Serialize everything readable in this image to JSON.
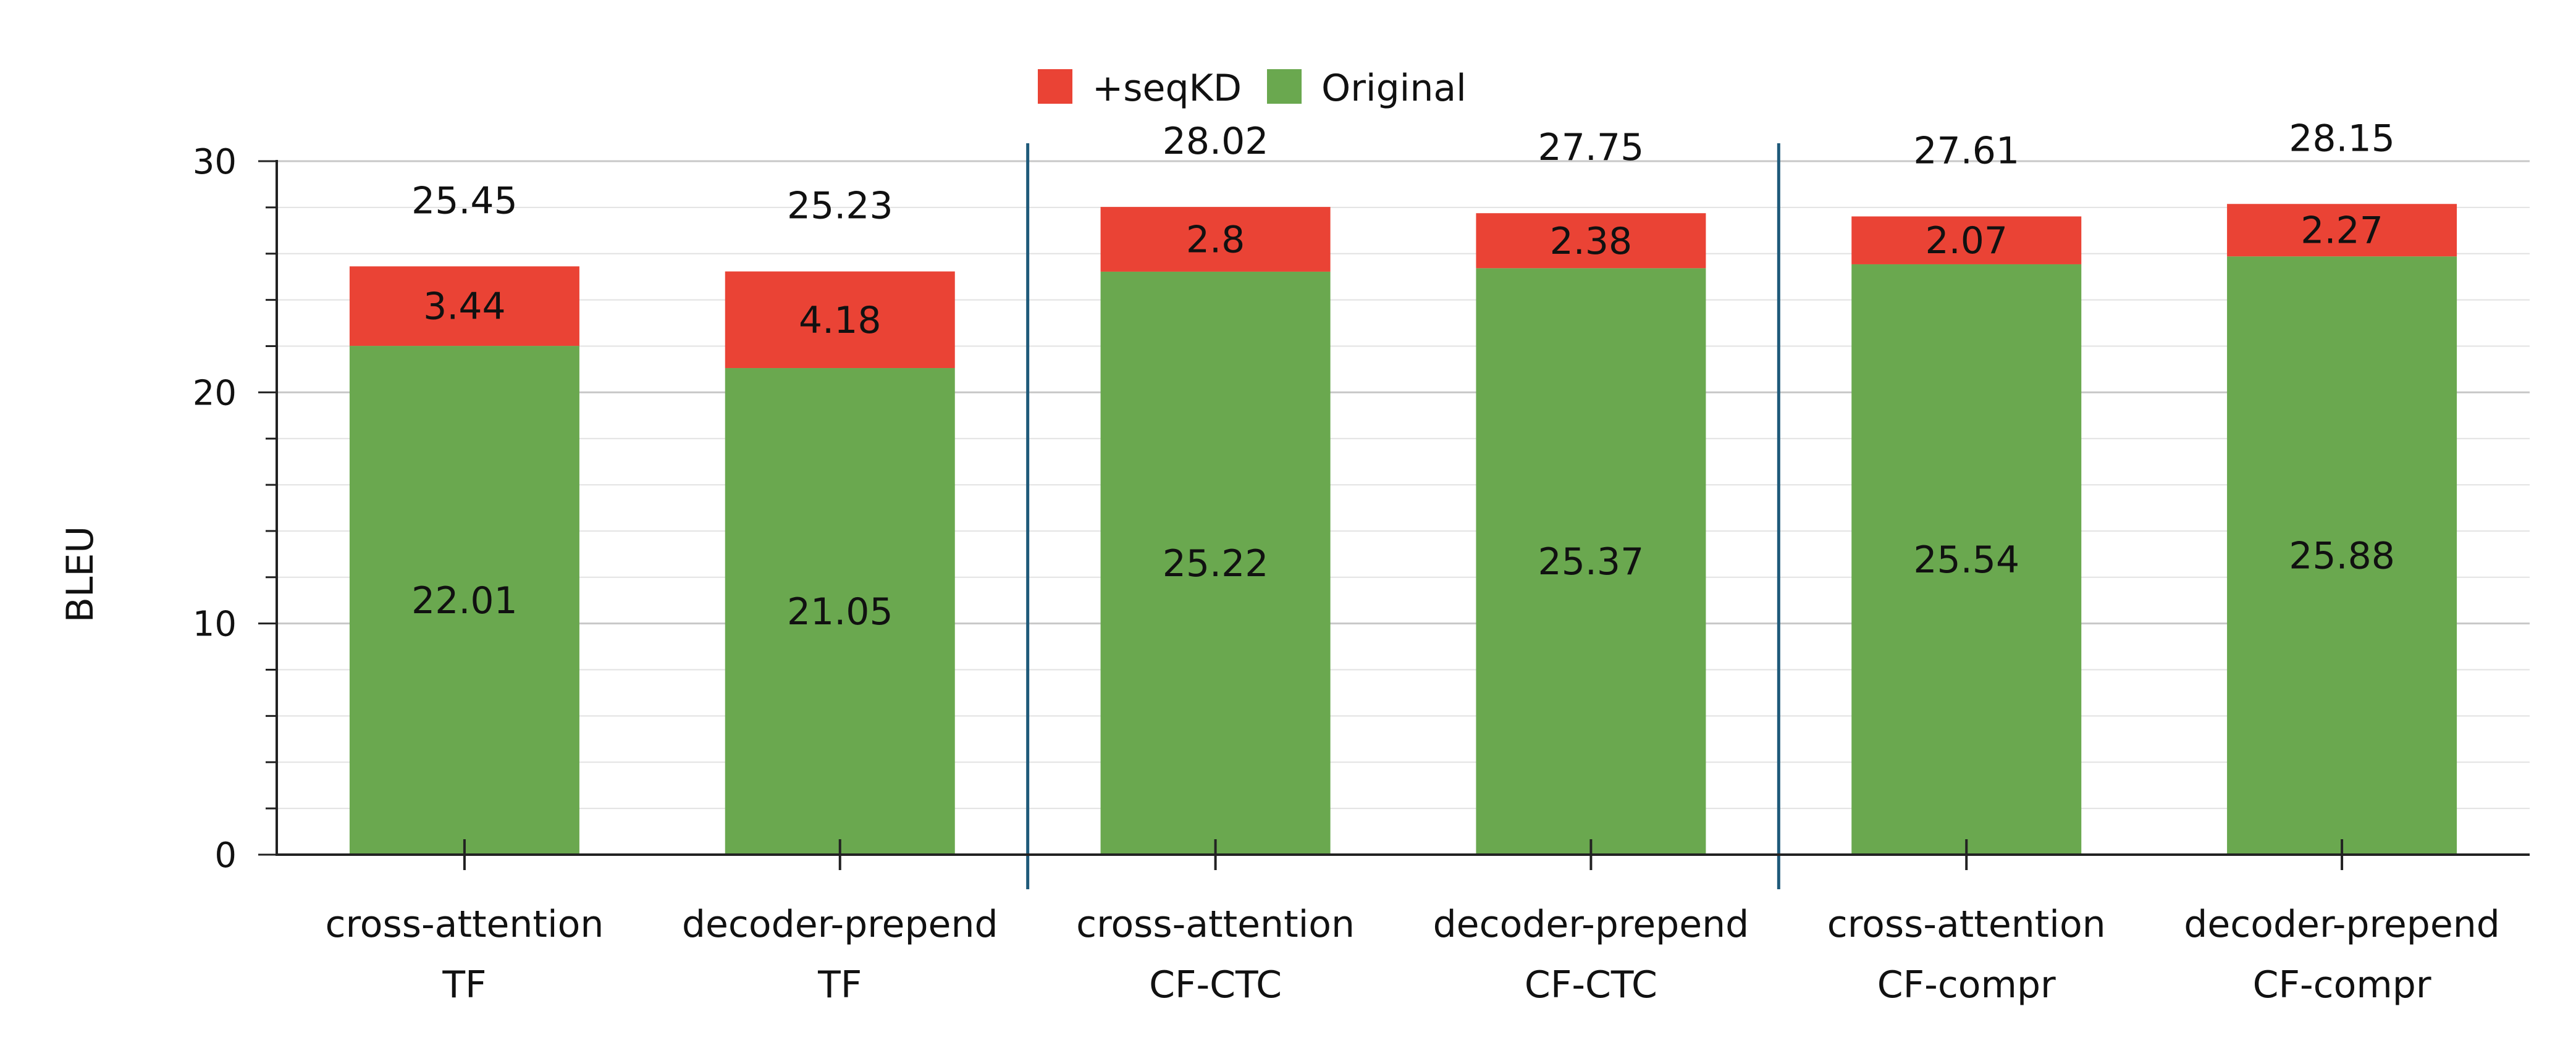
{
  "chart_data": {
    "type": "bar",
    "stacked": true,
    "categories": [
      [
        "cross-attention",
        "TF"
      ],
      [
        "decoder-prepend",
        "TF"
      ],
      [
        "cross-attention",
        "CF-CTC"
      ],
      [
        "decoder-prepend",
        "CF-CTC"
      ],
      [
        "cross-attention",
        "CF-compr"
      ],
      [
        "decoder-prepend",
        "CF-compr"
      ]
    ],
    "series": [
      {
        "name": "Original",
        "color": "#6aa84f",
        "values": [
          22.01,
          21.05,
          25.22,
          25.37,
          25.54,
          25.88
        ],
        "labels": [
          "22.01",
          "21.05",
          "25.22",
          "25.37",
          "25.54",
          "25.88"
        ]
      },
      {
        "name": "+seqKD",
        "color": "#ea4335",
        "values": [
          3.44,
          4.18,
          2.8,
          2.38,
          2.07,
          2.27
        ],
        "labels": [
          "3.44",
          "4.18",
          "2.8",
          "2.38",
          "2.07",
          "2.27"
        ]
      }
    ],
    "totals": [
      25.45,
      25.23,
      28.02,
      27.75,
      27.61,
      28.15
    ],
    "total_labels": [
      "25.45",
      "25.23",
      "28.02",
      "27.75",
      "27.61",
      "28.15"
    ],
    "legend_order": [
      "+seqKD",
      "Original"
    ],
    "legend_position": "top-center",
    "xlabel": "",
    "ylabel": "BLEU",
    "ylim": [
      0,
      30
    ],
    "yticks": [
      0,
      10,
      20,
      30
    ],
    "ytick_labels": [
      "0",
      "10",
      "20",
      "30"
    ],
    "minor_ytick_step": 2,
    "grid": true,
    "group_separators_after": [
      2,
      4
    ],
    "separator_color": "#1f5a7a"
  }
}
